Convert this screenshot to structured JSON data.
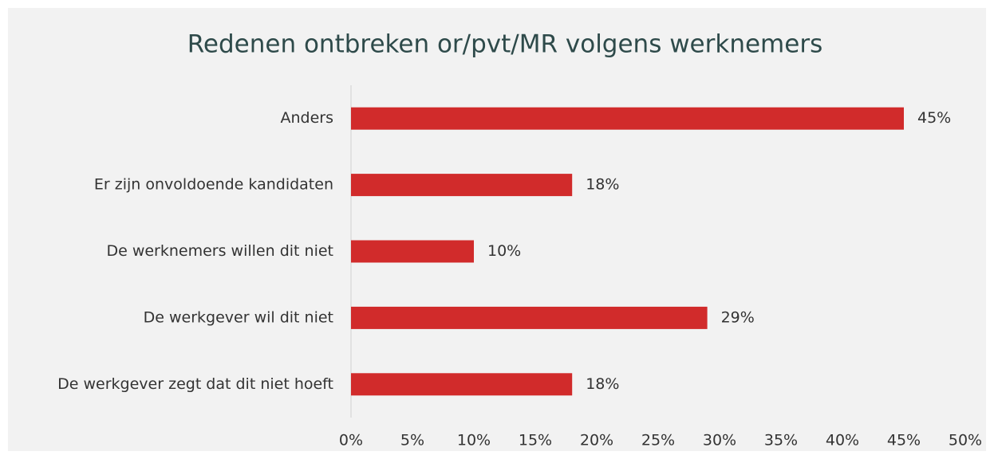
{
  "chart_data": {
    "type": "bar",
    "orientation": "horizontal",
    "title": "Redenen ontbreken or/pvt/MR volgens werknemers",
    "categories": [
      "Anders",
      "Er zijn onvoldoende kandidaten",
      "De werknemers willen dit niet",
      "De werkgever wil dit niet",
      "De werkgever zegt dat dit niet hoeft"
    ],
    "values": [
      45,
      18,
      10,
      29,
      18
    ],
    "value_labels": [
      "45%",
      "18%",
      "10%",
      "29%",
      "18%"
    ],
    "color": "#d12b2b",
    "xlim": [
      0,
      50
    ],
    "xticks": [
      {
        "value": 0,
        "label": "0%"
      },
      {
        "value": 5,
        "label": "5%"
      },
      {
        "value": 10,
        "label": "10%"
      },
      {
        "value": 15,
        "label": "15%"
      },
      {
        "value": 20,
        "label": "20%"
      },
      {
        "value": 25,
        "label": "25%"
      },
      {
        "value": 30,
        "label": "30%"
      },
      {
        "value": 35,
        "label": "35%"
      },
      {
        "value": 40,
        "label": "40%"
      },
      {
        "value": 45,
        "label": "45%"
      },
      {
        "value": 50,
        "label": "50%"
      }
    ],
    "grid": false
  }
}
